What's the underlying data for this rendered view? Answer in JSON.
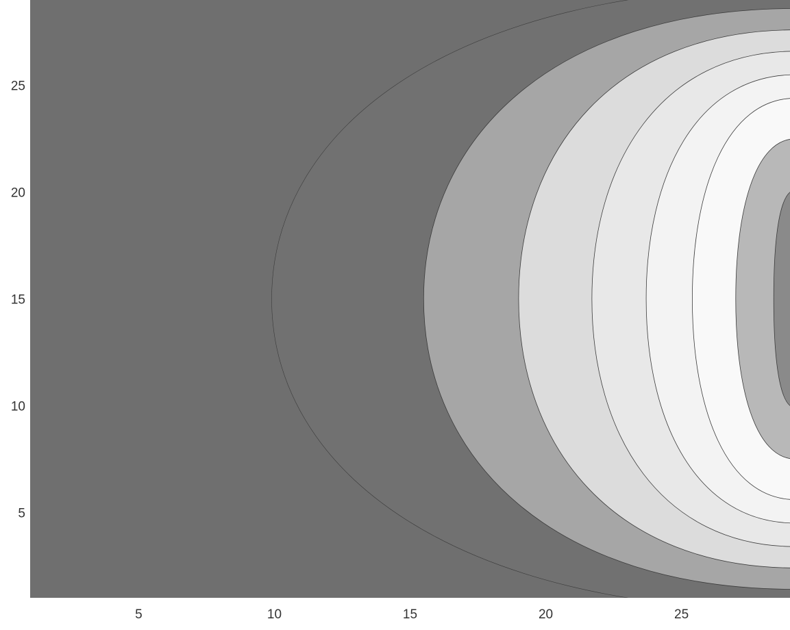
{
  "chart_data": {
    "type": "contourf",
    "title": "",
    "xlabel": "",
    "ylabel": "",
    "xlim": [
      1,
      29
    ],
    "ylim": [
      1,
      29
    ],
    "x_ticks": [
      {
        "value": 5,
        "label": "5"
      },
      {
        "value": 10,
        "label": "10"
      },
      {
        "value": 15,
        "label": "15"
      },
      {
        "value": 20,
        "label": "20"
      },
      {
        "value": 25,
        "label": "25"
      }
    ],
    "y_ticks": [
      {
        "value": 5,
        "label": "5"
      },
      {
        "value": 10,
        "label": "10"
      },
      {
        "value": 15,
        "label": "15"
      },
      {
        "value": 20,
        "label": "20"
      },
      {
        "value": 25,
        "label": "25"
      }
    ],
    "colormap": "gray",
    "background_color": "#6f6f6f",
    "grid": false,
    "legend": "none",
    "center_y": 15,
    "contour_bands": [
      {
        "level": 1,
        "x_at_center": 9.9,
        "y_top": 29.6,
        "fill": "#717171"
      },
      {
        "level": 2,
        "x_at_center": 15.5,
        "y_top": 28.6,
        "fill": "#a6a6a6"
      },
      {
        "level": 3,
        "x_at_center": 19.0,
        "y_top": 27.6,
        "fill": "#dcdcdc"
      },
      {
        "level": 4,
        "x_at_center": 21.7,
        "y_top": 26.6,
        "fill": "#e8e8e8"
      },
      {
        "level": 5,
        "x_at_center": 23.7,
        "y_top": 25.5,
        "fill": "#f3f3f3"
      },
      {
        "level": 6,
        "x_at_center": 25.4,
        "y_top": 24.4,
        "fill": "#f9f9f9"
      },
      {
        "level": 7,
        "x_at_center": 27.0,
        "y_top": 22.5,
        "fill": "#b8b8b8"
      },
      {
        "level": 8,
        "x_at_center": 28.4,
        "y_top": 20.1,
        "fill": "#8a8a8a"
      }
    ]
  }
}
